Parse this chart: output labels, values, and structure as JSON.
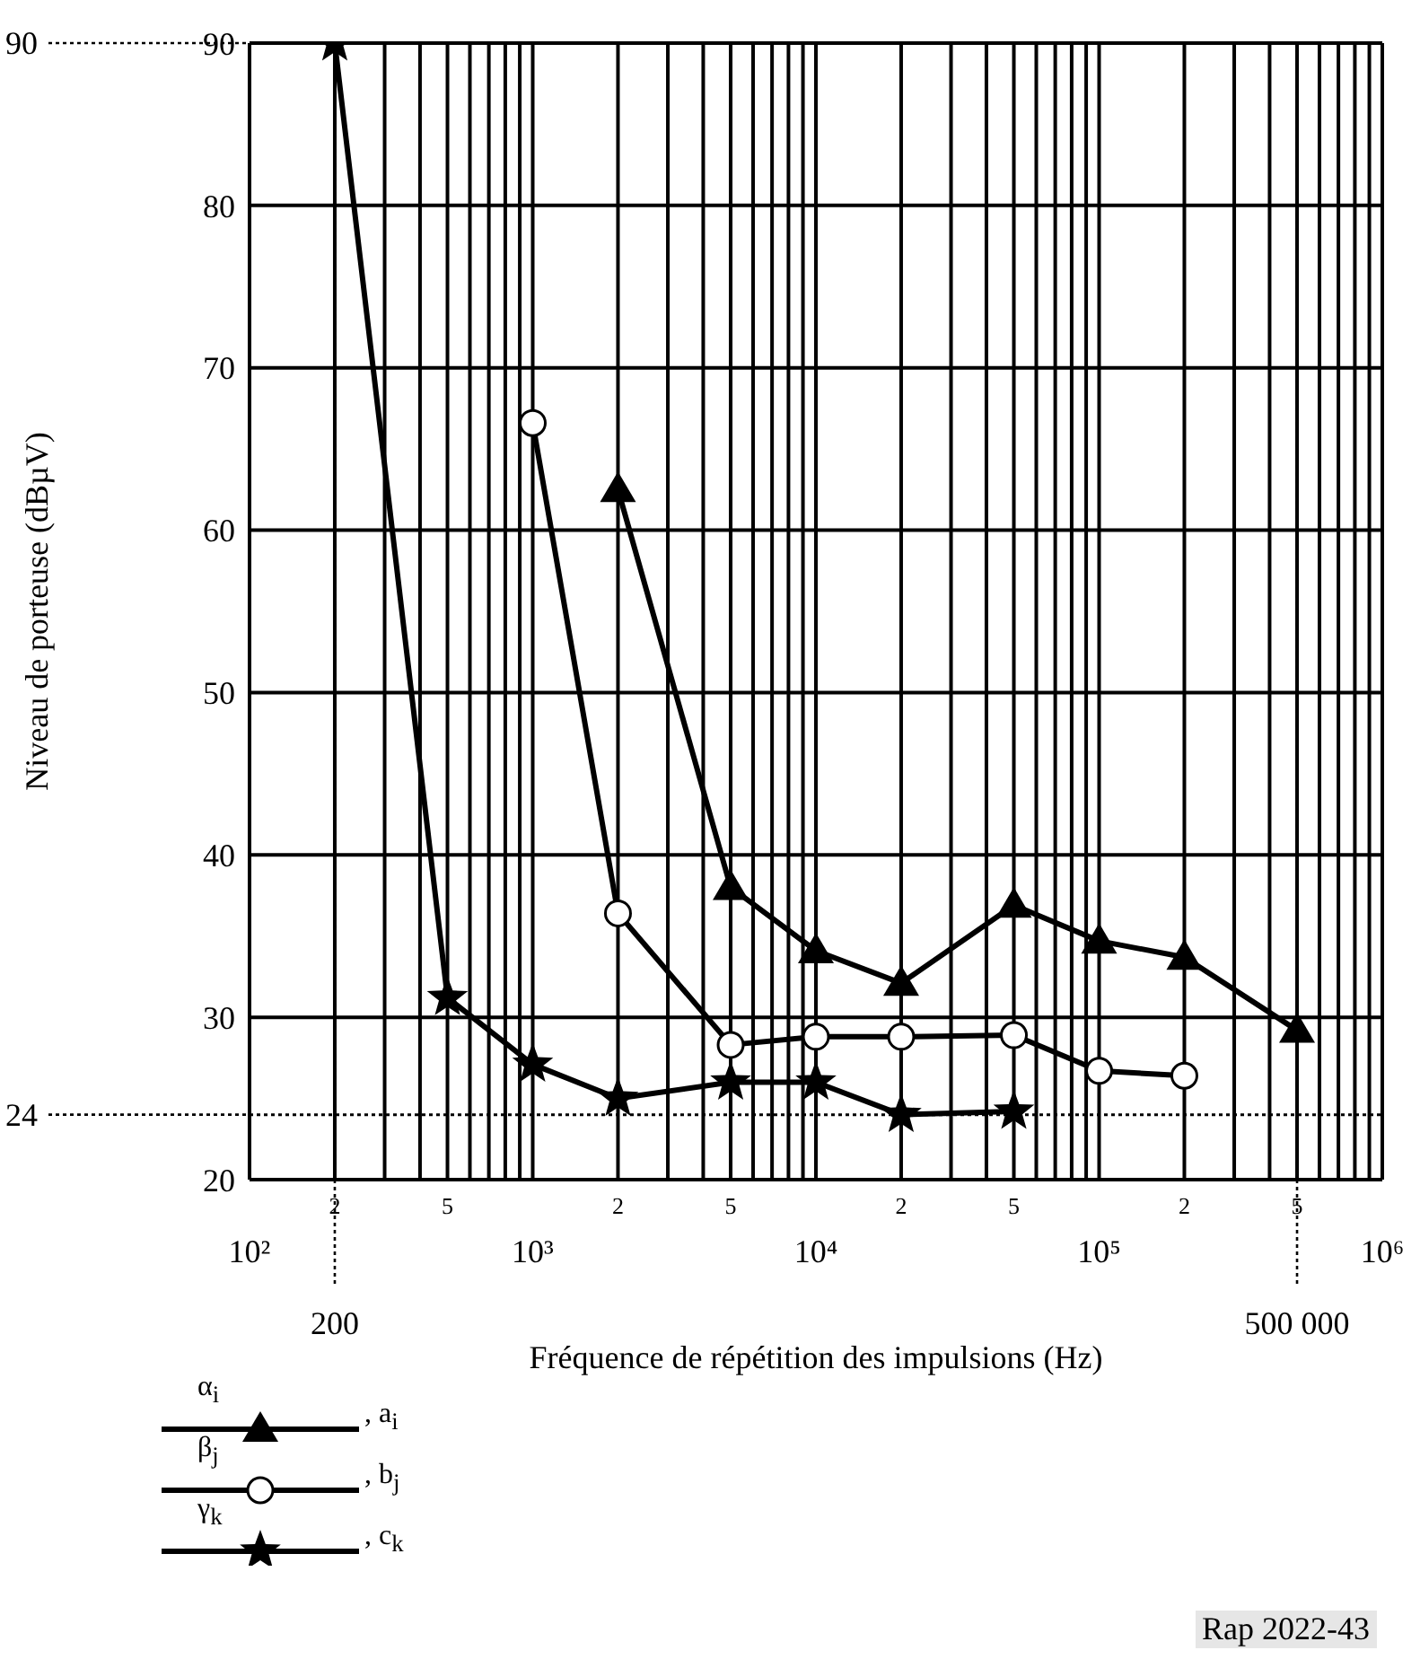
{
  "chart_data": {
    "type": "line",
    "xlabel": "Fréquence de répétition des impulsions (Hz)",
    "ylabel": "Niveau de porteuse (dBµV)",
    "log": "x",
    "xlim": [
      100,
      1000000
    ],
    "ylim": [
      20,
      90
    ],
    "yticks": [
      20,
      30,
      40,
      50,
      60,
      70,
      80,
      90
    ],
    "xticks": [
      {
        "value": 100,
        "label": "10²"
      },
      {
        "value": 200,
        "label": null
      },
      {
        "value": 300,
        "label": null
      },
      {
        "value": 400,
        "label": null
      },
      {
        "value": 500,
        "label": null
      },
      {
        "value": 600,
        "label": null
      },
      {
        "value": 700,
        "label": null
      },
      {
        "value": 800,
        "label": null
      },
      {
        "value": 900,
        "label": null
      },
      {
        "value": 1000,
        "label": "10³"
      },
      {
        "value": 2000,
        "label": null
      },
      {
        "value": 3000,
        "label": null
      },
      {
        "value": 4000,
        "label": null
      },
      {
        "value": 5000,
        "label": null
      },
      {
        "value": 6000,
        "label": null
      },
      {
        "value": 7000,
        "label": null
      },
      {
        "value": 8000,
        "label": null
      },
      {
        "value": 9000,
        "label": null
      },
      {
        "value": 10000,
        "label": "10⁴"
      },
      {
        "value": 20000,
        "label": null
      },
      {
        "value": 30000,
        "label": null
      },
      {
        "value": 40000,
        "label": null
      },
      {
        "value": 50000,
        "label": null
      },
      {
        "value": 60000,
        "label": null
      },
      {
        "value": 70000,
        "label": null
      },
      {
        "value": 80000,
        "label": null
      },
      {
        "value": 90000,
        "label": null
      },
      {
        "value": 100000,
        "label": "10⁵"
      },
      {
        "value": 200000,
        "label": null
      },
      {
        "value": 300000,
        "label": null
      },
      {
        "value": 400000,
        "label": null
      },
      {
        "value": 500000,
        "label": null
      },
      {
        "value": 600000,
        "label": null
      },
      {
        "value": 700000,
        "label": null
      },
      {
        "value": 800000,
        "label": null
      },
      {
        "value": 900000,
        "label": null
      },
      {
        "value": 1000000,
        "label": "10⁶"
      }
    ],
    "grid": true,
    "legend": "bottom left",
    "line_style": "solid",
    "series": [
      {
        "name": "α$_{i}$, a$_{i}$",
        "color": "#000000",
        "marker": "triangle",
        "x": [
          2000,
          5000,
          10000,
          20000,
          50000,
          100000,
          200000,
          500000
        ],
        "values": [
          62.5,
          38,
          34.1,
          32.1,
          36.9,
          34.7,
          33.7,
          29.2
        ]
      },
      {
        "name": "β$_{j}$, b$_{j}$",
        "color": "#000000",
        "marker": "circle",
        "x": [
          1000,
          2000,
          5000,
          10000,
          20000,
          50000,
          100000,
          200000
        ],
        "values": [
          66.6,
          36.4,
          28.3,
          28.8,
          28.8,
          28.9,
          26.7,
          26.4
        ]
      },
      {
        "name": "γ$_{k}$, c$_{k}$",
        "color": "#000000",
        "marker": "star",
        "x": [
          200,
          500,
          1000,
          2000,
          5000,
          10000,
          20000,
          50000
        ],
        "values": [
          90,
          31.2,
          27.1,
          25,
          26,
          26,
          24,
          24.2
        ]
      }
    ],
    "ref_lines": [
      {
        "axis": "y",
        "value": 90,
        "label": "90",
        "line_style": "dotted"
      },
      {
        "axis": "y",
        "value": 24,
        "label": "24",
        "line_style": "dotted"
      },
      {
        "axis": "x",
        "value": 200,
        "label": "200",
        "line_style": "dotted"
      },
      {
        "axis": "x",
        "value": 500000,
        "label": "500 000",
        "line_style": "dotted"
      }
    ],
    "annotations": [
      "2",
      "5",
      "2",
      "5",
      "2",
      "5",
      "2",
      "5",
      "Rap 2022-43"
    ]
  }
}
